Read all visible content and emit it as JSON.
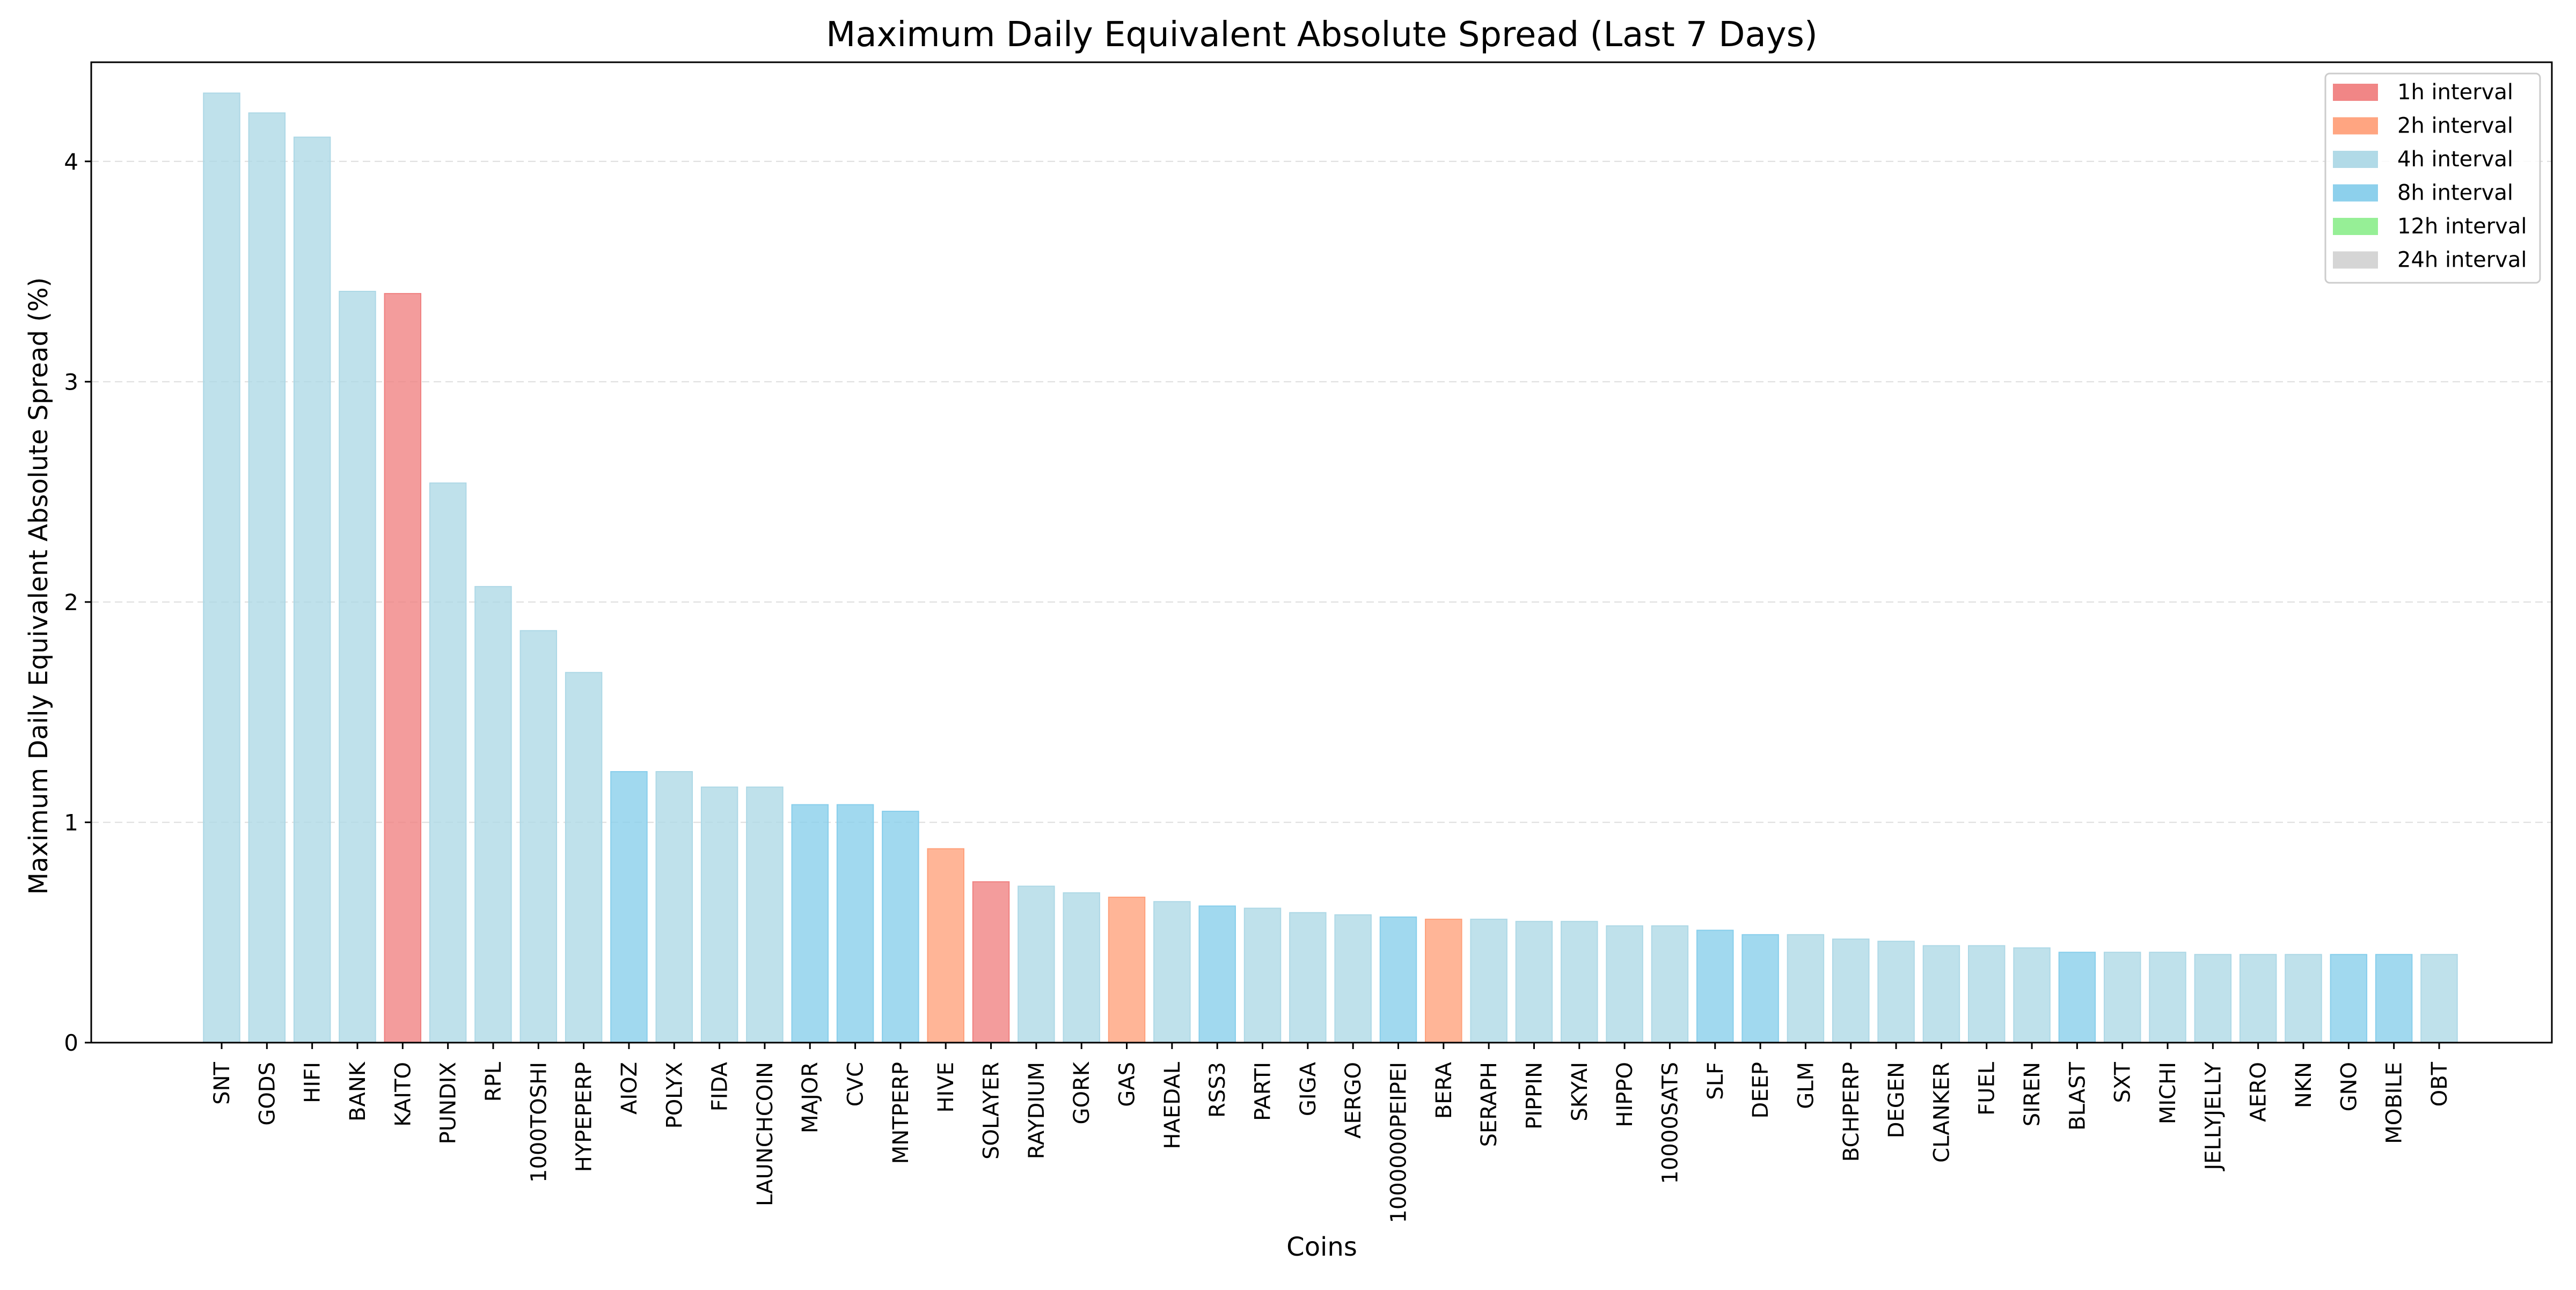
{
  "chart_data": {
    "type": "bar",
    "title": "Maximum Daily Equivalent Absolute Spread (Last 7 Days)",
    "xlabel": "Coins",
    "ylabel": "Maximum Daily Equivalent Absolute Spread (%)",
    "ylim": [
      0,
      4.45
    ],
    "yticks": [
      0,
      1,
      2,
      3,
      4
    ],
    "grid": "horizontal dashed",
    "legend_position": "top-right",
    "interval_colors": {
      "1h interval": "#f08080",
      "2h interval": "#ffa07a",
      "4h interval": "#add8e6",
      "8h interval": "#87ceeb",
      "12h interval": "#90ee90",
      "24h interval": "#d3d3d3"
    },
    "legend": [
      "1h interval",
      "2h interval",
      "4h interval",
      "8h interval",
      "12h interval",
      "24h interval"
    ],
    "categories": [
      "SNT",
      "GODS",
      "HIFI",
      "BANK",
      "KAITO",
      "PUNDIX",
      "RPL",
      "1000TOSHI",
      "HYPEPERP",
      "AIOZ",
      "POLYX",
      "FIDA",
      "LAUNCHCOIN",
      "MAJOR",
      "CVC",
      "MNTPERP",
      "HIVE",
      "SOLAYER",
      "RAYDIUM",
      "GORK",
      "GAS",
      "HAEDAL",
      "RSS3",
      "PARTI",
      "GIGA",
      "AERGO",
      "1000000PEIPEI",
      "BERA",
      "SERAPH",
      "PIPPIN",
      "SKYAI",
      "HIPPO",
      "10000SATS",
      "SLF",
      "DEEP",
      "GLM",
      "BCHPERP",
      "DEGEN",
      "CLANKER",
      "FUEL",
      "SIREN",
      "BLAST",
      "SXT",
      "MICHI",
      "JELLYJELLY",
      "AERO",
      "NKN",
      "GNO",
      "MOBILE",
      "OBT"
    ],
    "values": [
      4.31,
      4.22,
      4.11,
      3.41,
      3.4,
      2.54,
      2.07,
      1.87,
      1.68,
      1.23,
      1.23,
      1.16,
      1.16,
      1.08,
      1.08,
      1.05,
      0.88,
      0.73,
      0.71,
      0.68,
      0.66,
      0.64,
      0.62,
      0.61,
      0.59,
      0.58,
      0.57,
      0.56,
      0.56,
      0.55,
      0.55,
      0.53,
      0.53,
      0.51,
      0.49,
      0.49,
      0.47,
      0.46,
      0.44,
      0.44,
      0.43,
      0.41,
      0.41,
      0.41,
      0.4,
      0.4,
      0.4,
      0.4,
      0.4,
      0.4
    ],
    "intervals": [
      "4h interval",
      "4h interval",
      "4h interval",
      "4h interval",
      "1h interval",
      "4h interval",
      "4h interval",
      "4h interval",
      "4h interval",
      "8h interval",
      "4h interval",
      "4h interval",
      "4h interval",
      "8h interval",
      "8h interval",
      "8h interval",
      "2h interval",
      "1h interval",
      "4h interval",
      "4h interval",
      "2h interval",
      "4h interval",
      "8h interval",
      "4h interval",
      "4h interval",
      "4h interval",
      "8h interval",
      "2h interval",
      "4h interval",
      "4h interval",
      "4h interval",
      "4h interval",
      "4h interval",
      "8h interval",
      "8h interval",
      "4h interval",
      "4h interval",
      "4h interval",
      "4h interval",
      "4h interval",
      "4h interval",
      "8h interval",
      "4h interval",
      "4h interval",
      "4h interval",
      "4h interval",
      "4h interval",
      "8h interval",
      "8h interval",
      "4h interval"
    ]
  }
}
